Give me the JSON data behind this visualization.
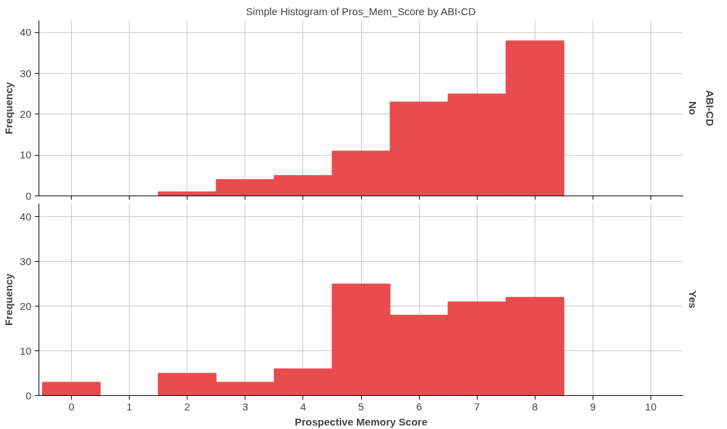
{
  "chart_data": [
    {
      "type": "histogram",
      "title": "Simple Histogram of Pros_Mem_Score by ABI-CD",
      "ylabel": "Frequency",
      "bins": [
        -0.5,
        0.5,
        1.5,
        2.5,
        3.5,
        4.5,
        5.5,
        6.5,
        7.5,
        8.5,
        9.5,
        10.5
      ],
      "values": [
        0,
        0,
        1,
        4,
        5,
        11,
        23,
        25,
        38,
        0,
        0
      ],
      "color": "#e84c4c",
      "xlim": [
        -0.56,
        10.56
      ],
      "xticks": [
        0,
        1,
        2,
        3,
        4,
        5,
        6,
        7,
        8,
        9,
        10
      ],
      "ylim": [
        0,
        43
      ],
      "yticks": [
        0,
        10,
        20,
        30,
        40
      ],
      "grid": true,
      "tick_labels": "y",
      "annotations": [
        "No",
        "ABI-CD"
      ]
    },
    {
      "type": "histogram",
      "xlabel": "Prospective Memory Score",
      "ylabel": "Frequency",
      "bins": [
        -0.5,
        0.5,
        1.5,
        2.5,
        3.5,
        4.5,
        5.5,
        6.5,
        7.5,
        8.5,
        9.5,
        10.5
      ],
      "values": [
        3,
        0,
        5,
        3,
        6,
        25,
        18,
        21,
        22,
        0,
        0
      ],
      "color": "#e84c4c",
      "xlim": [
        -0.56,
        10.56
      ],
      "xticks": [
        0,
        1,
        2,
        3,
        4,
        5,
        6,
        7,
        8,
        9,
        10
      ],
      "ylim": [
        0,
        43
      ],
      "yticks": [
        0,
        10,
        20,
        30,
        40
      ],
      "grid": true,
      "annotations": [
        "Yes"
      ]
    }
  ]
}
